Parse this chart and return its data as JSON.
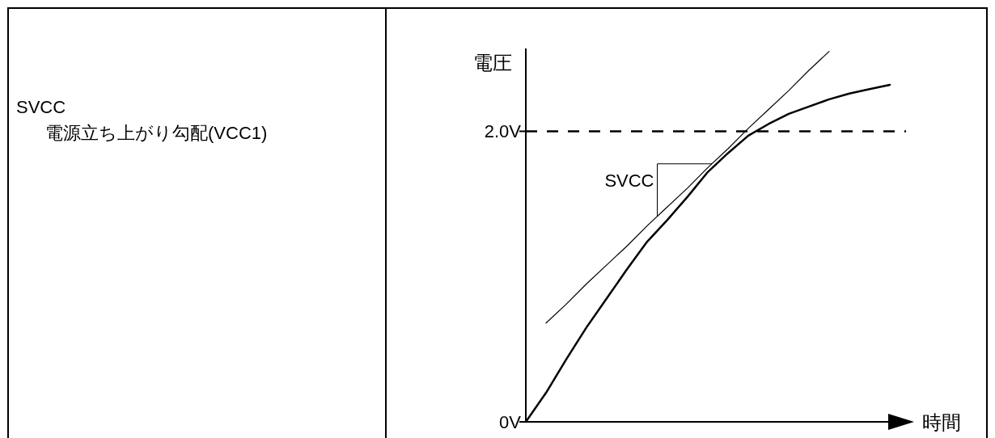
{
  "chart_data": {
    "type": "line",
    "ylabel": "電圧",
    "xlabel": "時間",
    "categories": [
      null,
      null,
      null,
      null,
      null,
      null,
      null,
      null,
      null,
      null,
      null,
      null,
      null,
      null,
      null,
      null,
      null,
      null,
      null
    ],
    "series": [
      {
        "color": "#000000",
        "values": [
          0,
          0.2,
          0.43,
          0.65,
          0.85,
          1.05,
          1.24,
          1.39,
          1.55,
          1.72,
          1.85,
          1.97,
          2.05,
          2.12,
          2.17,
          2.22,
          2.26,
          2.29,
          2.32
        ]
      },
      {
        "type": "line",
        "color": "#000000",
        "values": [
          null,
          0.68,
          0.81,
          0.95,
          1.08,
          1.21,
          1.35,
          1.48,
          1.61,
          1.75,
          1.88,
          2.02,
          2.15,
          2.28,
          2.42,
          2.55,
          null,
          null,
          null
        ]
      }
    ],
    "ylim": [
      0,
      2.57
    ],
    "yticks": [
      {
        "value": 0,
        "label": "0V"
      },
      {
        "value": 2,
        "label": "2.0V"
      }
    ],
    "ref_lines": [
      {
        "axis": "y",
        "value": 2,
        "color": "#000000",
        "line_style": "dashed"
      }
    ],
    "annotations": [
      "SVCC",
      "電源立ち上がり勾配(VCC1)",
      "SVCC"
    ],
    "marker": "none",
    "line_style": "solid"
  }
}
